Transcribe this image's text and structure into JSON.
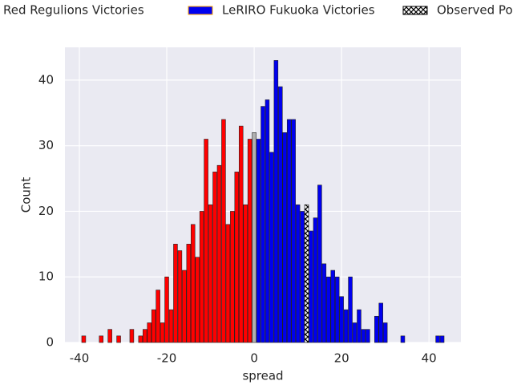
{
  "chart_data": {
    "type": "histogram",
    "xlabel": "spread",
    "ylabel": "Count",
    "xlim": [
      -43.3,
      47.3
    ],
    "ylim": [
      0,
      45
    ],
    "xticks": [
      -40,
      -20,
      0,
      20,
      40
    ],
    "yticks": [
      0,
      10,
      20,
      30,
      40
    ],
    "grid": true,
    "legend": "top",
    "series": [
      {
        "name": "Tohoku Red Regulions Victories",
        "color": "#ff0000",
        "x": [
          -39,
          -35,
          -33,
          -31,
          -28,
          -26,
          -25,
          -24,
          -23,
          -22,
          -21,
          -20,
          -19,
          -18,
          -17,
          -16,
          -15,
          -14,
          -13,
          -12,
          -11,
          -10,
          -9,
          -8,
          -7,
          -6,
          -5,
          -4,
          -3,
          -2,
          -1
        ],
        "values": [
          1,
          1,
          2,
          1,
          2,
          1,
          2,
          3,
          5,
          8,
          3,
          10,
          5,
          15,
          14,
          11,
          15,
          18,
          13,
          20,
          31,
          21,
          26,
          27,
          34,
          18,
          20,
          26,
          33,
          21,
          31
        ]
      },
      {
        "name": "LeRIRO Fukuoka Victories",
        "color": "#0000ee",
        "x": [
          1,
          2,
          3,
          4,
          5,
          6,
          7,
          8,
          9,
          10,
          11,
          13,
          14,
          15,
          16,
          17,
          18,
          19,
          20,
          21,
          22,
          23,
          24,
          25,
          26,
          28,
          29,
          30,
          34,
          42,
          43
        ],
        "values": [
          31,
          36,
          37,
          29,
          43,
          39,
          32,
          34,
          34,
          21,
          20,
          17,
          19,
          24,
          12,
          10,
          11,
          10,
          7,
          5,
          10,
          3,
          5,
          2,
          2,
          4,
          6,
          3,
          1,
          1,
          1
        ]
      },
      {
        "name": "Observed Point",
        "color": "#ffffff",
        "hatch": "x",
        "x": [
          12
        ],
        "values": [
          21
        ]
      },
      {
        "color": "#b0b0b0",
        "x": [
          0
        ],
        "values": [
          32
        ]
      }
    ]
  }
}
